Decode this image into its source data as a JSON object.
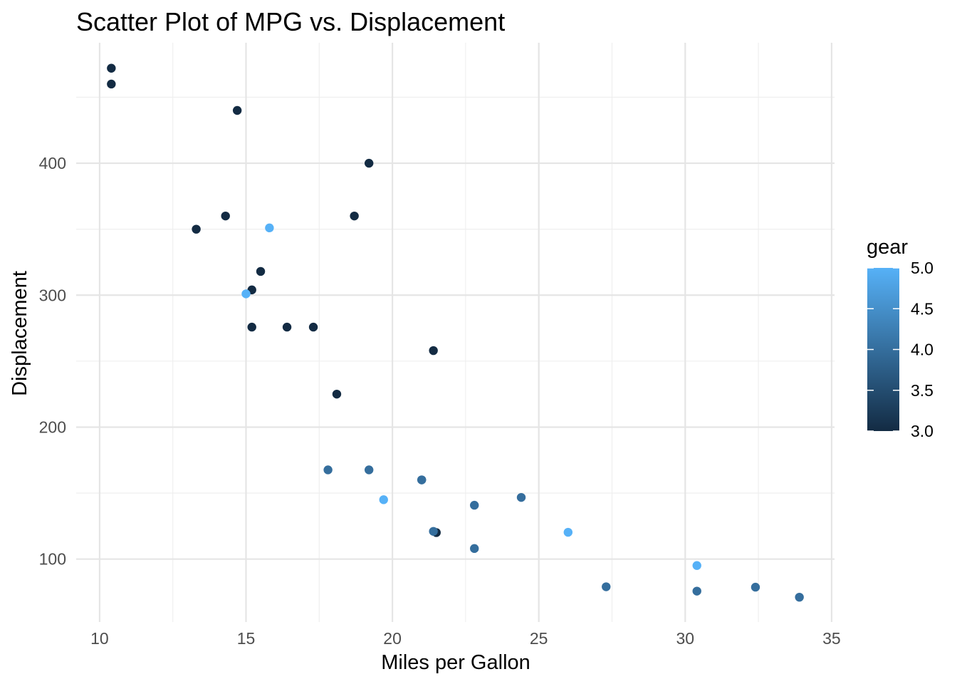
{
  "chart_data": {
    "type": "scatter",
    "title": "Scatter Plot of MPG vs. Displacement",
    "xlabel": "Miles per Gallon",
    "ylabel": "Displacement",
    "xlim": [
      9.2,
      35.1
    ],
    "ylim": [
      52.3,
      491.3
    ],
    "x_ticks": [
      10,
      15,
      20,
      25,
      30,
      35
    ],
    "y_ticks": [
      100,
      200,
      300,
      400
    ],
    "grid": true,
    "legend": {
      "title": "gear",
      "type": "colorbar",
      "range": [
        3.0,
        5.0
      ],
      "ticks": [
        "3.0",
        "3.5",
        "4.0",
        "4.5",
        "5.0"
      ],
      "low_color": "#132B43",
      "high_color": "#56B1F7",
      "placement": "right"
    },
    "points": [
      {
        "x": 21.0,
        "y": 160.0,
        "gear": 4
      },
      {
        "x": 21.0,
        "y": 160.0,
        "gear": 4
      },
      {
        "x": 22.8,
        "y": 108.0,
        "gear": 4
      },
      {
        "x": 21.4,
        "y": 258.0,
        "gear": 3
      },
      {
        "x": 18.7,
        "y": 360.0,
        "gear": 3
      },
      {
        "x": 18.1,
        "y": 225.0,
        "gear": 3
      },
      {
        "x": 14.3,
        "y": 360.0,
        "gear": 3
      },
      {
        "x": 24.4,
        "y": 146.7,
        "gear": 4
      },
      {
        "x": 22.8,
        "y": 140.8,
        "gear": 4
      },
      {
        "x": 19.2,
        "y": 167.6,
        "gear": 4
      },
      {
        "x": 17.8,
        "y": 167.6,
        "gear": 4
      },
      {
        "x": 16.4,
        "y": 275.8,
        "gear": 3
      },
      {
        "x": 17.3,
        "y": 275.8,
        "gear": 3
      },
      {
        "x": 15.2,
        "y": 275.8,
        "gear": 3
      },
      {
        "x": 10.4,
        "y": 472.0,
        "gear": 3
      },
      {
        "x": 10.4,
        "y": 460.0,
        "gear": 3
      },
      {
        "x": 14.7,
        "y": 440.0,
        "gear": 3
      },
      {
        "x": 32.4,
        "y": 78.7,
        "gear": 4
      },
      {
        "x": 30.4,
        "y": 75.7,
        "gear": 4
      },
      {
        "x": 33.9,
        "y": 71.1,
        "gear": 4
      },
      {
        "x": 21.5,
        "y": 120.1,
        "gear": 3
      },
      {
        "x": 15.5,
        "y": 318.0,
        "gear": 3
      },
      {
        "x": 15.2,
        "y": 304.0,
        "gear": 3
      },
      {
        "x": 13.3,
        "y": 350.0,
        "gear": 3
      },
      {
        "x": 19.2,
        "y": 400.0,
        "gear": 3
      },
      {
        "x": 27.3,
        "y": 79.0,
        "gear": 4
      },
      {
        "x": 26.0,
        "y": 120.3,
        "gear": 5
      },
      {
        "x": 30.4,
        "y": 95.1,
        "gear": 5
      },
      {
        "x": 15.8,
        "y": 351.0,
        "gear": 5
      },
      {
        "x": 19.7,
        "y": 145.0,
        "gear": 5
      },
      {
        "x": 15.0,
        "y": 301.0,
        "gear": 5
      },
      {
        "x": 21.4,
        "y": 121.0,
        "gear": 4
      }
    ]
  }
}
